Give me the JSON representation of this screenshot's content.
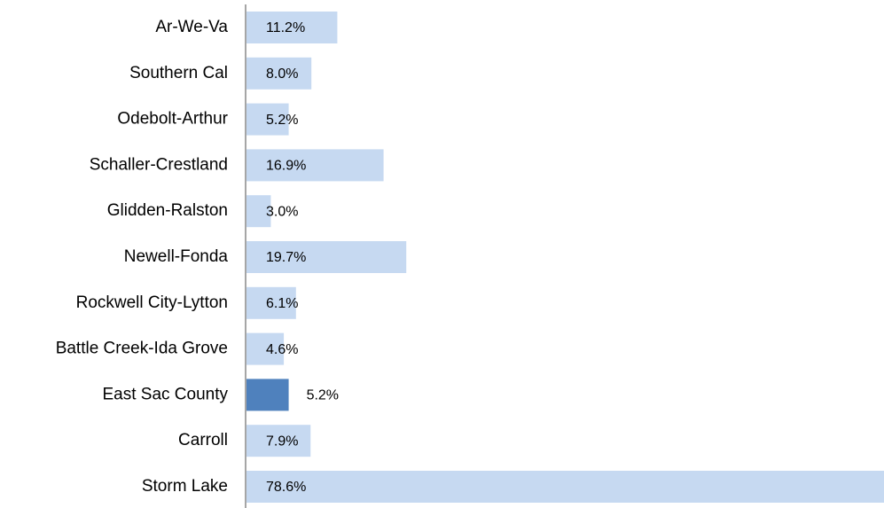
{
  "chart_data": {
    "type": "bar",
    "orientation": "horizontal",
    "categories": [
      "Ar-We-Va",
      "Southern Cal",
      "Odebolt-Arthur",
      "Schaller-Crestland",
      "Glidden-Ralston",
      "Newell-Fonda",
      "Rockwell City-Lytton",
      "Battle Creek-Ida Grove",
      "East Sac County",
      "Carroll",
      "Storm Lake"
    ],
    "values": [
      11.2,
      8.0,
      5.2,
      16.9,
      3.0,
      19.7,
      6.1,
      4.6,
      5.2,
      7.9,
      78.6
    ],
    "value_labels": [
      "11.2%",
      "8.0%",
      "5.2%",
      "16.9%",
      "3.0%",
      "19.7%",
      "6.1%",
      "4.6%",
      "5.2%",
      "7.9%",
      "78.6%"
    ],
    "colors": [
      "#c6d9f1",
      "#c6d9f1",
      "#c6d9f1",
      "#c6d9f1",
      "#c6d9f1",
      "#c6d9f1",
      "#c6d9f1",
      "#c6d9f1",
      "#4f81bd",
      "#c6d9f1",
      "#c6d9f1"
    ]
  }
}
